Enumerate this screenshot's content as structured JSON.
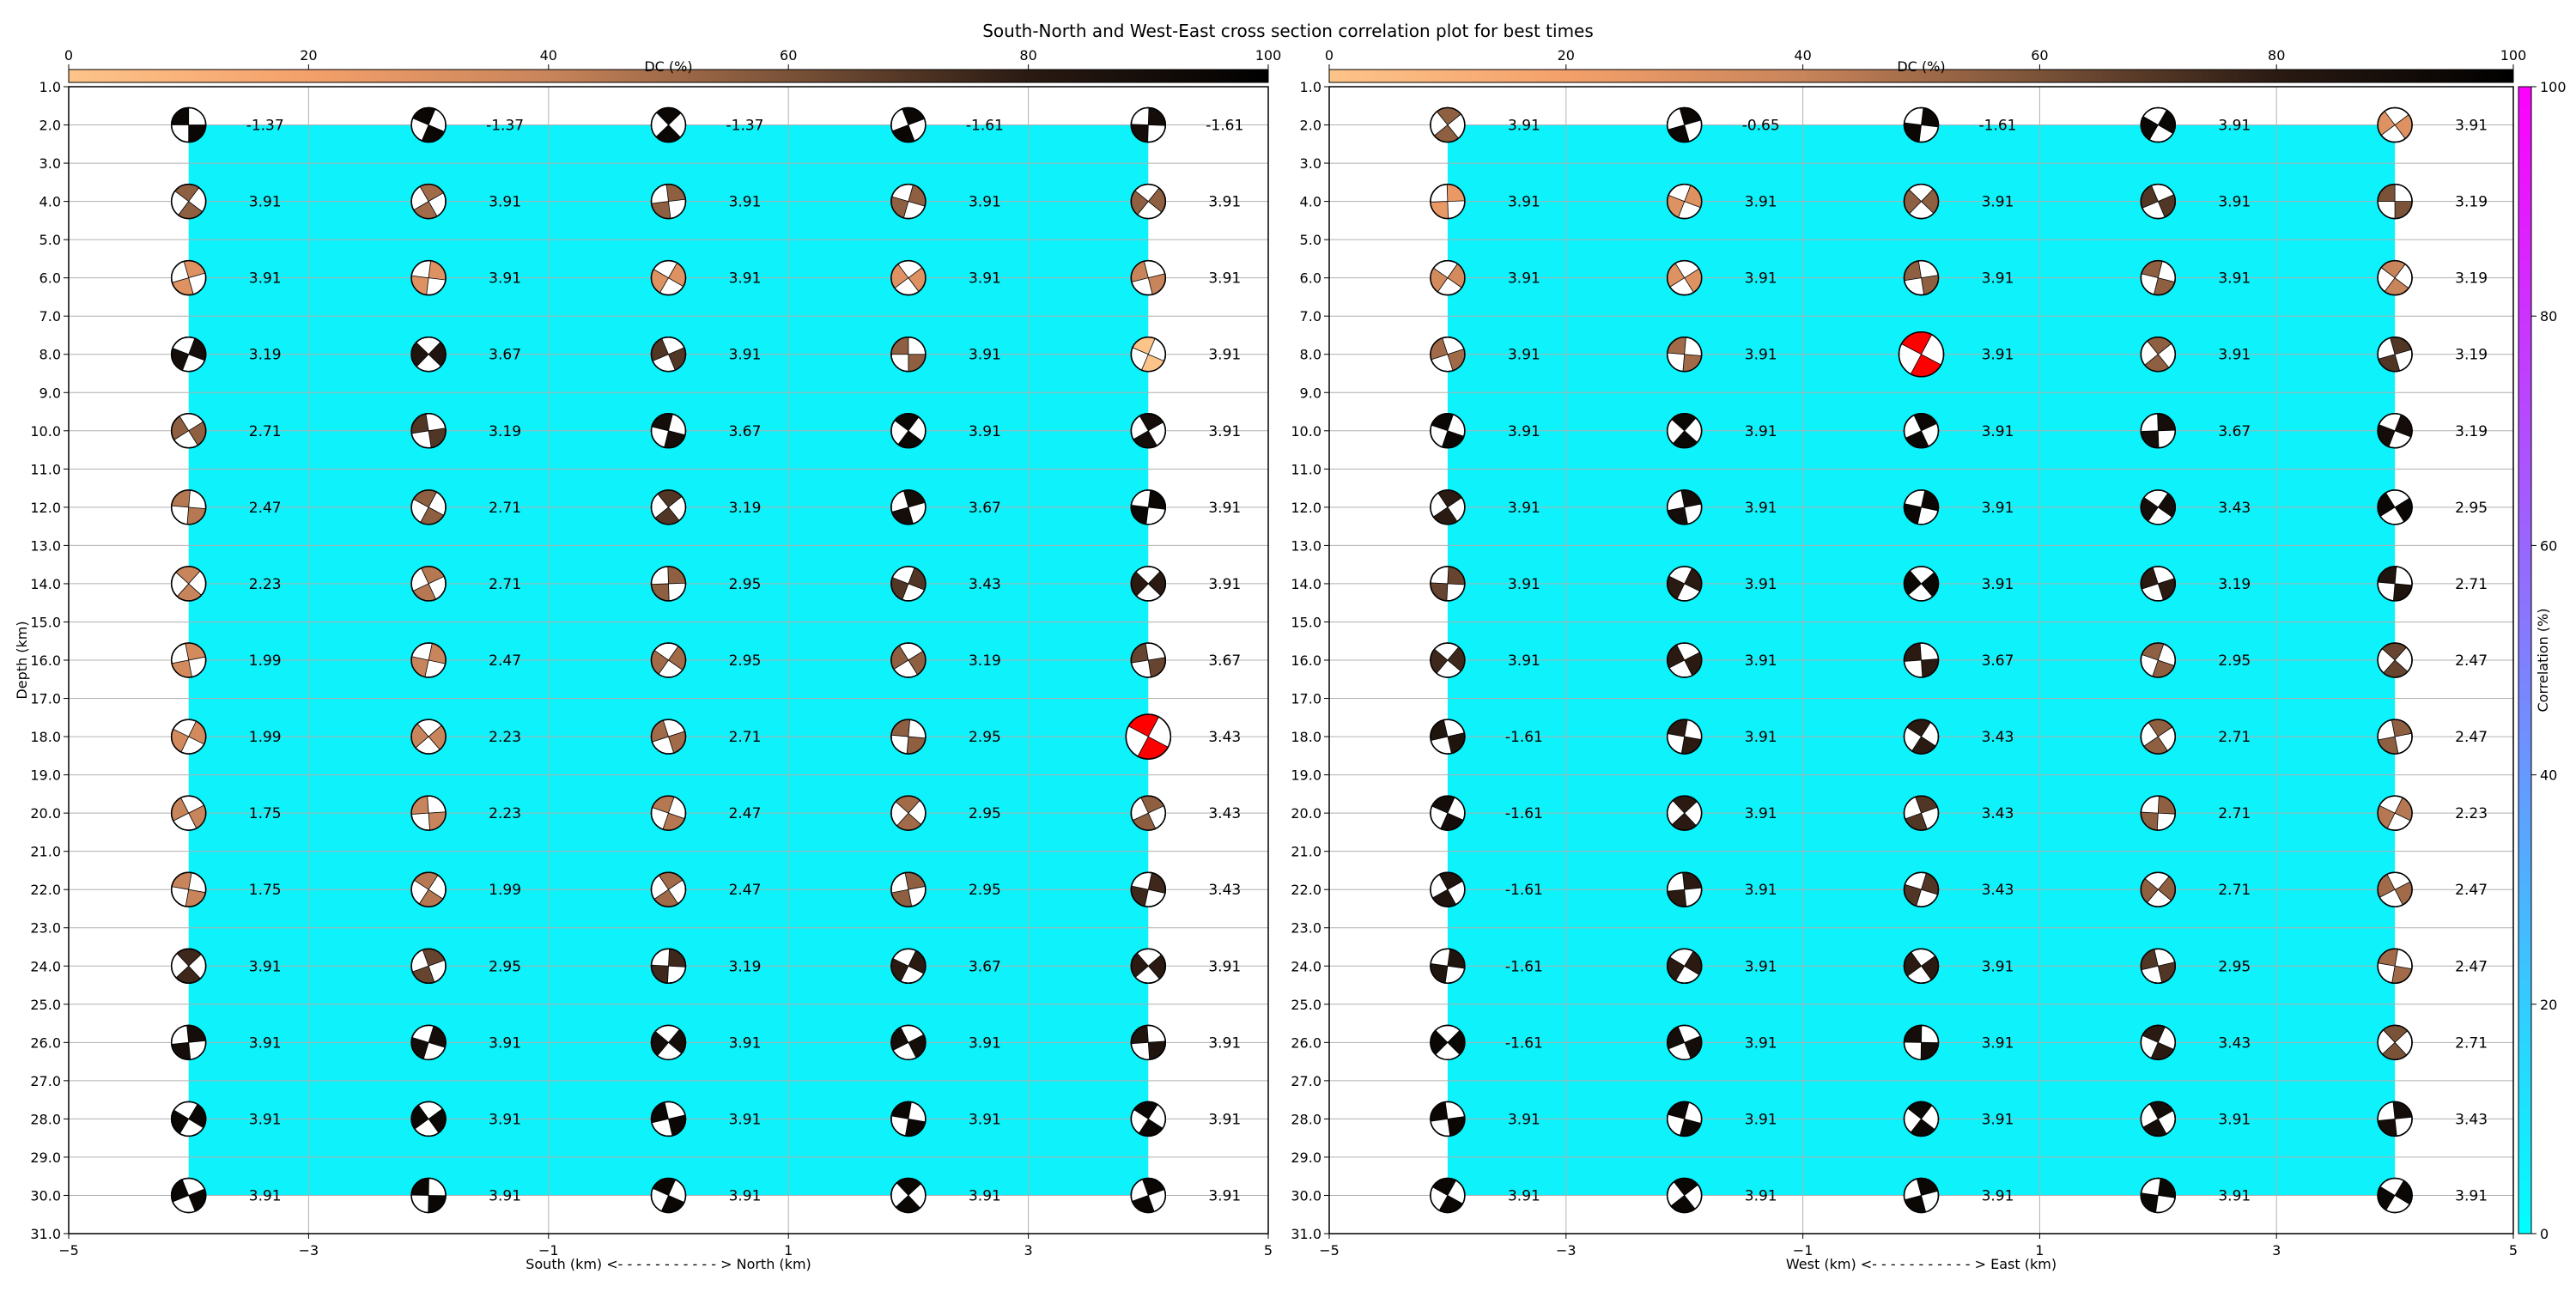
{
  "title": "South-North and West-East cross section correlation plot for best times",
  "colors": {
    "correlation_fill": "#0df2fb",
    "highlight_beachball": "#ff0000",
    "dc_colormap": [
      "#fdc48a",
      "#f4a06a",
      "#c8845a",
      "#7a5238",
      "#2a1a12",
      "#000000"
    ],
    "corr_colormap": [
      "#00ffff",
      "#ff00ff"
    ]
  },
  "dc_colorbar": {
    "label": "DC (%)",
    "ticks": [
      "0",
      "20",
      "40",
      "60",
      "80",
      "100"
    ]
  },
  "corr_colorbar": {
    "label": "Correlation (%)",
    "ticks": [
      "0",
      "20",
      "40",
      "60",
      "80",
      "100"
    ]
  },
  "chart_data": [
    {
      "type": "heatmap",
      "section": "South-North",
      "xlabel": "South (km) <- - - - - - - - - - - > North (km)",
      "ylabel": "Depth (km)",
      "xlim": [
        -5,
        5
      ],
      "ylim": [
        31,
        1
      ],
      "xticks": [
        "−5",
        "−3",
        "−1",
        "1",
        "3",
        "5"
      ],
      "yticks": [
        "1.0",
        "2.0",
        "3.0",
        "4.0",
        "5.0",
        "6.0",
        "7.0",
        "8.0",
        "9.0",
        "10.0",
        "11.0",
        "12.0",
        "13.0",
        "14.0",
        "15.0",
        "16.0",
        "17.0",
        "18.0",
        "19.0",
        "20.0",
        "21.0",
        "22.0",
        "23.0",
        "24.0",
        "25.0",
        "26.0",
        "27.0",
        "28.0",
        "29.0",
        "30.0",
        "31.0"
      ],
      "x_positions": [
        -4,
        -2,
        0,
        2,
        4
      ],
      "depths": [
        2,
        4,
        6,
        8,
        10,
        12,
        14,
        16,
        18,
        20,
        22,
        24,
        26,
        28,
        30
      ],
      "values": [
        [
          "-1.37",
          "-1.37",
          "-1.37",
          "-1.61",
          "-1.61"
        ],
        [
          "3.91",
          "3.91",
          "3.91",
          "3.91",
          "3.91"
        ],
        [
          "3.91",
          "3.91",
          "3.91",
          "3.91",
          "3.91"
        ],
        [
          "3.19",
          "3.67",
          "3.91",
          "3.91",
          "3.91"
        ],
        [
          "2.71",
          "3.19",
          "3.67",
          "3.91",
          "3.91"
        ],
        [
          "2.47",
          "2.71",
          "3.19",
          "3.67",
          "3.91"
        ],
        [
          "2.23",
          "2.71",
          "2.95",
          "3.43",
          "3.91"
        ],
        [
          "1.99",
          "2.47",
          "2.95",
          "3.19",
          "3.67"
        ],
        [
          "1.99",
          "2.23",
          "2.71",
          "2.95",
          "3.43"
        ],
        [
          "1.75",
          "2.23",
          "2.47",
          "2.95",
          "3.43"
        ],
        [
          "1.75",
          "1.99",
          "2.47",
          "2.95",
          "3.43"
        ],
        [
          "3.91",
          "2.95",
          "3.19",
          "3.67",
          "3.91"
        ],
        [
          "3.91",
          "3.91",
          "3.91",
          "3.91",
          "3.91"
        ],
        [
          "3.91",
          "3.91",
          "3.91",
          "3.91",
          "3.91"
        ],
        [
          "3.91",
          "3.91",
          "3.91",
          "3.91",
          "3.91"
        ]
      ],
      "dc_percent": [
        [
          95,
          95,
          95,
          95,
          90
        ],
        [
          55,
          50,
          55,
          55,
          55
        ],
        [
          30,
          30,
          30,
          30,
          40
        ],
        [
          90,
          85,
          70,
          55,
          0
        ],
        [
          55,
          70,
          90,
          95,
          90
        ],
        [
          45,
          55,
          70,
          90,
          95
        ],
        [
          40,
          45,
          55,
          70,
          80
        ],
        [
          35,
          40,
          50,
          55,
          65
        ],
        [
          35,
          40,
          50,
          55,
          55
        ],
        [
          40,
          40,
          45,
          50,
          55
        ],
        [
          40,
          45,
          50,
          55,
          75
        ],
        [
          75,
          65,
          75,
          80,
          80
        ],
        [
          90,
          90,
          90,
          90,
          85
        ],
        [
          95,
          95,
          95,
          95,
          95
        ],
        [
          95,
          95,
          95,
          95,
          95
        ]
      ],
      "highlight": [
        8,
        4
      ],
      "correlation_region": {
        "x": [
          -4,
          4
        ],
        "depth": [
          2,
          30
        ]
      }
    },
    {
      "type": "heatmap",
      "section": "West-East",
      "xlabel": "West (km) <- - - - - - - - - - - > East (km)",
      "ylabel": "",
      "xlim": [
        -5,
        5
      ],
      "ylim": [
        31,
        1
      ],
      "xticks": [
        "−5",
        "−3",
        "−1",
        "1",
        "3",
        "5"
      ],
      "yticks": [
        "1.0",
        "2.0",
        "3.0",
        "4.0",
        "5.0",
        "6.0",
        "7.0",
        "8.0",
        "9.0",
        "10.0",
        "11.0",
        "12.0",
        "13.0",
        "14.0",
        "15.0",
        "16.0",
        "17.0",
        "18.0",
        "19.0",
        "20.0",
        "21.0",
        "22.0",
        "23.0",
        "24.0",
        "25.0",
        "26.0",
        "27.0",
        "28.0",
        "29.0",
        "30.0",
        "31.0"
      ],
      "x_positions": [
        -4,
        -2,
        0,
        2,
        4
      ],
      "depths": [
        2,
        4,
        6,
        8,
        10,
        12,
        14,
        16,
        18,
        20,
        22,
        24,
        26,
        28,
        30
      ],
      "values": [
        [
          "3.91",
          "-0.65",
          "-1.61",
          "3.91",
          "3.91"
        ],
        [
          "3.91",
          "3.91",
          "3.91",
          "3.91",
          "3.19"
        ],
        [
          "3.91",
          "3.91",
          "3.91",
          "3.91",
          "3.19"
        ],
        [
          "3.91",
          "3.91",
          "3.91",
          "3.91",
          "3.19"
        ],
        [
          "3.91",
          "3.91",
          "3.91",
          "3.67",
          "3.19"
        ],
        [
          "3.91",
          "3.91",
          "3.91",
          "3.43",
          "2.95"
        ],
        [
          "3.91",
          "3.91",
          "3.91",
          "3.19",
          "2.71"
        ],
        [
          "3.91",
          "3.91",
          "3.67",
          "2.95",
          "2.47"
        ],
        [
          "-1.61",
          "3.91",
          "3.43",
          "2.71",
          "2.47"
        ],
        [
          "-1.61",
          "3.91",
          "3.43",
          "2.71",
          "2.23"
        ],
        [
          "-1.61",
          "3.91",
          "3.43",
          "2.71",
          "2.47"
        ],
        [
          "-1.61",
          "3.91",
          "3.91",
          "2.95",
          "2.47"
        ],
        [
          "-1.61",
          "3.91",
          "3.91",
          "3.43",
          "2.71"
        ],
        [
          "3.91",
          "3.91",
          "3.91",
          "3.91",
          "3.43"
        ],
        [
          "3.91",
          "3.91",
          "3.91",
          "3.91",
          "3.91"
        ]
      ],
      "dc_percent": [
        [
          55,
          95,
          95,
          95,
          30
        ],
        [
          25,
          30,
          55,
          70,
          60
        ],
        [
          35,
          30,
          55,
          55,
          40
        ],
        [
          50,
          50,
          0,
          55,
          70
        ],
        [
          95,
          95,
          95,
          90,
          90
        ],
        [
          80,
          90,
          95,
          90,
          95
        ],
        [
          65,
          80,
          95,
          80,
          85
        ],
        [
          75,
          80,
          80,
          55,
          65
        ],
        [
          85,
          80,
          80,
          55,
          55
        ],
        [
          90,
          80,
          70,
          55,
          45
        ],
        [
          85,
          80,
          70,
          55,
          50
        ],
        [
          85,
          80,
          80,
          70,
          50
        ],
        [
          95,
          90,
          90,
          80,
          60
        ],
        [
          95,
          95,
          95,
          90,
          90
        ],
        [
          95,
          95,
          95,
          95,
          95
        ]
      ],
      "highlight": [
        3,
        2
      ],
      "correlation_region": {
        "x": [
          -4,
          4
        ],
        "depth": [
          2,
          30
        ]
      }
    }
  ]
}
